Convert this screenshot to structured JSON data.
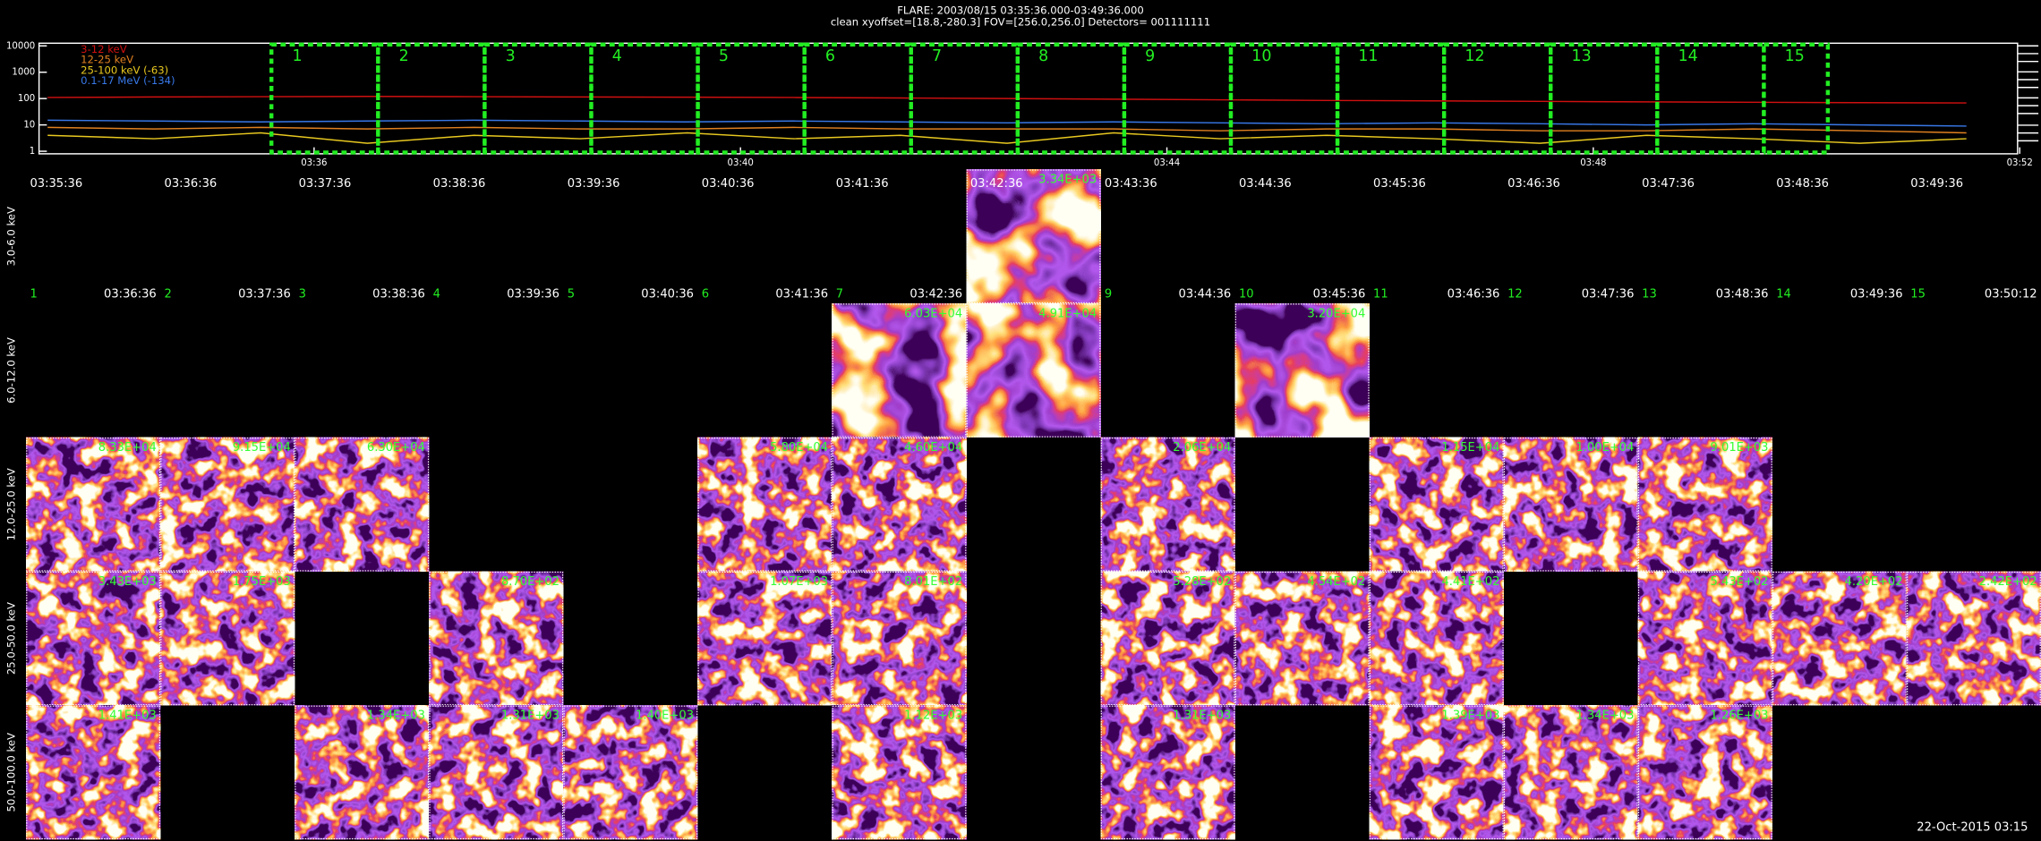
{
  "header": {
    "title": "FLARE: 2003/08/15 03:35:36.000-03:49:36.000",
    "subtitle": "clean    xyoffset=[18.8,-280.3]   FOV=[256.0,256.0]   Detectors= 001111111"
  },
  "lightcurve": {
    "type": "line",
    "log_y": true,
    "xlim": [
      33.42,
      51.98
    ],
    "ylim": [
      0.8,
      12600
    ],
    "yticks": [
      10000,
      1000,
      100,
      10,
      1
    ],
    "xticks": [
      {
        "value": 36,
        "label": "03:36"
      },
      {
        "value": 40,
        "label": "03:40"
      },
      {
        "value": 44,
        "label": "03:44"
      },
      {
        "value": 48,
        "label": "03:48"
      },
      {
        "value": 52,
        "label": "03:52"
      }
    ],
    "x": [
      33.5,
      34.5,
      35.5,
      36.5,
      37.5,
      38.5,
      39.5,
      40.5,
      41.5,
      42.5,
      43.5,
      44.5,
      45.5,
      46.5,
      47.5,
      48.5,
      49.5,
      50.5,
      51.5
    ],
    "series": [
      {
        "name": "3-12 keV",
        "color": "#d01010",
        "values": [
          110,
          115,
          118,
          120,
          118,
          115,
          112,
          110,
          105,
          100,
          95,
          90,
          85,
          82,
          78,
          75,
          72,
          70,
          68
        ]
      },
      {
        "name": "12-25 keV",
        "color": "#e08020",
        "values": [
          8,
          7,
          8,
          7,
          8,
          7,
          7,
          8,
          7,
          7,
          7,
          6,
          7,
          7,
          6,
          6,
          7,
          6,
          5
        ]
      },
      {
        "name": "25-100 keV (-63)",
        "color": "#e8c820",
        "values": [
          4,
          3,
          5,
          2,
          4,
          3,
          5,
          3,
          4,
          2,
          5,
          3,
          4,
          3,
          2,
          4,
          3,
          2,
          3
        ]
      },
      {
        "name": "0.1-17 MeV (-134)",
        "color": "#3878e8",
        "values": [
          15,
          14,
          13,
          14,
          15,
          14,
          13,
          14,
          13,
          12,
          13,
          12,
          11,
          12,
          11,
          10,
          11,
          10,
          9
        ]
      }
    ],
    "intervals": {
      "labels": [
        "1",
        "2",
        "3",
        "4",
        "5",
        "6",
        "7",
        "8",
        "9",
        "10",
        "11",
        "12",
        "13",
        "14",
        "15"
      ],
      "starts": [
        35.6,
        36.6,
        37.6,
        38.6,
        39.6,
        40.6,
        41.6,
        42.6,
        43.6,
        44.6,
        45.6,
        46.6,
        47.6,
        48.6,
        49.6
      ],
      "ends": [
        36.6,
        37.6,
        38.6,
        39.6,
        40.6,
        41.6,
        42.6,
        43.6,
        44.6,
        45.6,
        46.6,
        47.6,
        48.6,
        49.6,
        50.2
      ]
    }
  },
  "grid": {
    "columns": [
      {
        "number": "1",
        "start": "03:35:36",
        "end": "03:36:36"
      },
      {
        "number": "2",
        "start": "03:36:36",
        "end": "03:37:36"
      },
      {
        "number": "3",
        "start": "03:37:36",
        "end": "03:38:36"
      },
      {
        "number": "4",
        "start": "03:38:36",
        "end": "03:39:36"
      },
      {
        "number": "5",
        "start": "03:39:36",
        "end": "03:40:36"
      },
      {
        "number": "6",
        "start": "03:40:36",
        "end": "03:41:36"
      },
      {
        "number": "7",
        "start": "03:41:36",
        "end": "03:42:36"
      },
      {
        "number": "8",
        "start": "03:42:36",
        "end": "03:43:36"
      },
      {
        "number": "9",
        "start": "03:43:36",
        "end": "03:44:36"
      },
      {
        "number": "10",
        "start": "03:44:36",
        "end": "03:45:36"
      },
      {
        "number": "11",
        "start": "03:45:36",
        "end": "03:46:36"
      },
      {
        "number": "12",
        "start": "03:46:36",
        "end": "03:47:36"
      },
      {
        "number": "13",
        "start": "03:47:36",
        "end": "03:48:36"
      },
      {
        "number": "14",
        "start": "03:48:36",
        "end": "03:49:36"
      },
      {
        "number": "15",
        "start": "03:49:36",
        "end": "03:50:12"
      }
    ],
    "rows": [
      {
        "label": "3.0-6.0 keV",
        "cells": [
          null,
          null,
          null,
          null,
          null,
          null,
          null,
          "3.34E+03",
          null,
          null,
          null,
          null,
          null,
          null,
          null
        ]
      },
      {
        "label": "6.0-12.0 keV",
        "cells": [
          null,
          null,
          null,
          null,
          null,
          null,
          "6.03E+04",
          "4.91E+04",
          null,
          "3.20E+04",
          null,
          null,
          null,
          null,
          null
        ]
      },
      {
        "label": "12.0-25.0 keV",
        "cells": [
          "8.33E+04",
          "9.15E+04",
          "6.30E+04",
          null,
          null,
          "5.80E+04",
          "4.60E+04",
          null,
          "2.06E+04",
          null,
          "1.15E+04",
          "1.00E+04",
          "9.01E+03",
          null,
          null
        ]
      },
      {
        "label": "25.0-50.0 keV",
        "cells": [
          "3.43E+03",
          "1.75E+03",
          null,
          "8.70E+02",
          null,
          "1.07E+03",
          "8.01E+02",
          null,
          "5.28E+02",
          "4.54E+02",
          "4.41E+02",
          null,
          "5.43E+02",
          "4.20E+02",
          "2.42E+02"
        ]
      },
      {
        "label": "50.0-100.0 keV",
        "cells": [
          "1.41E+03",
          null,
          "1.34E+03",
          "1.31E+03",
          "1.40E+03",
          null,
          "1.12E+03",
          null,
          "1.31E+03",
          null,
          "1.39E+03",
          "1.34E+03",
          "1.26E+03",
          null,
          null
        ]
      }
    ]
  },
  "footer": {
    "date": "22-Oct-2015 03:15"
  }
}
